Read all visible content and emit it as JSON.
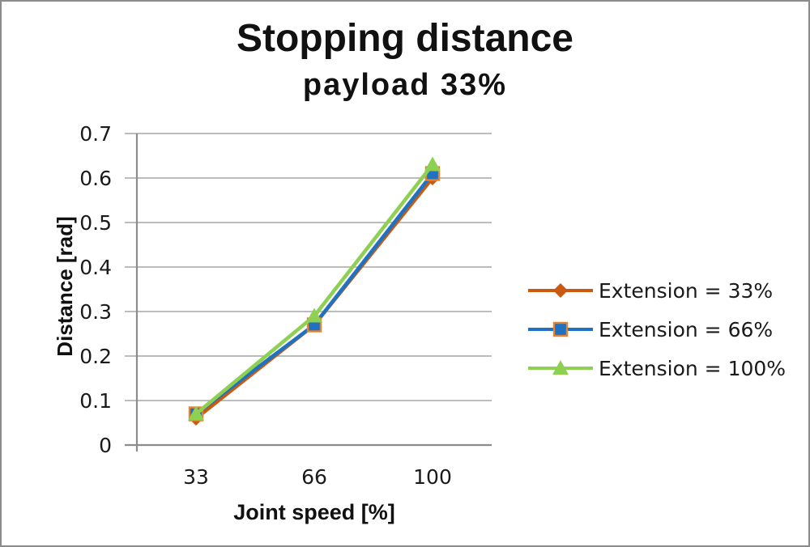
{
  "figure": {
    "background": "#ffffff",
    "border_color": "#8c8c8c"
  },
  "chart_data": {
    "type": "line",
    "title": "Stopping distance",
    "subtitle": "payload 33%",
    "xlabel": "Joint speed [%]",
    "ylabel": "Distance [rad]",
    "categories": [
      "33",
      "66",
      "100"
    ],
    "series": [
      {
        "name": "Extension = 33%",
        "values": [
          0.06,
          0.27,
          0.6
        ],
        "color": "#ca5a12",
        "marker": "diamond",
        "marker_border": "#ca5a12"
      },
      {
        "name": "Extension = 66%",
        "values": [
          0.07,
          0.27,
          0.61
        ],
        "color": "#2071c0",
        "marker": "square",
        "marker_border": "#e8822d"
      },
      {
        "name": "Extension = 100%",
        "values": [
          0.07,
          0.29,
          0.63
        ],
        "color": "#8ed051",
        "marker": "triangle",
        "marker_border": "#8ed051"
      }
    ],
    "ylim": [
      0,
      0.7
    ],
    "ytick_step": 0.1,
    "ytick_labels": [
      "0",
      "0.1",
      "0.2",
      "0.3",
      "0.4",
      "0.5",
      "0.6",
      "0.7"
    ],
    "grid": true,
    "gridline_color": "#a6a6a6",
    "axis_color": "#8c8c8c",
    "text_color": "#1a1a1a",
    "legend_position": "right"
  }
}
